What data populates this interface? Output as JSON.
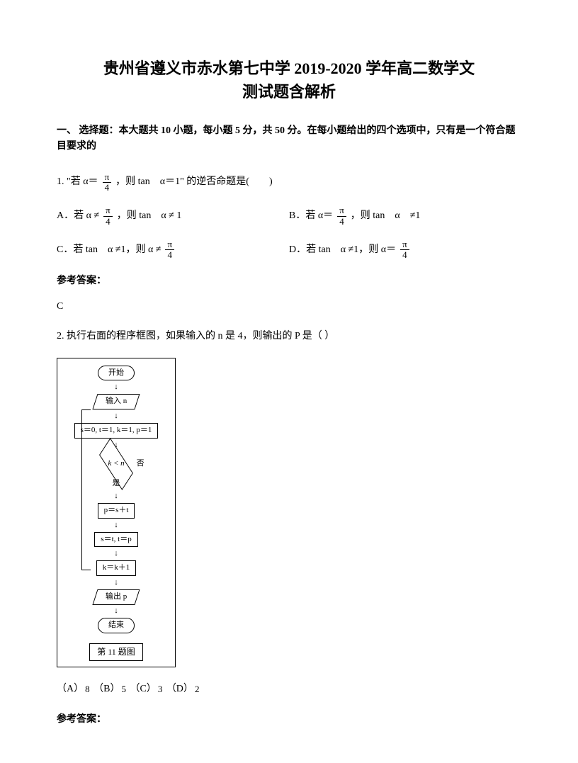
{
  "title_line1": "贵州省遵义市赤水第七中学 2019-2020 学年高二数学文",
  "title_line2": "测试题含解析",
  "section1": "一、 选择题：本大题共 10 小题，每小题 5 分，共 50 分。在每小题给出的四个选项中，只有是一个符合题目要求的",
  "q1": {
    "stem_a": "1. \"若 α＝",
    "stem_b": "，则 tan　α＝1\" 的逆否命题是(　　)",
    "frac_num": "π",
    "frac_den": "4",
    "optA_a": "A．若 α ≠",
    "optA_b": "，则 tan　α ≠ 1",
    "optB_a": "B．若 α＝",
    "optB_b": "，则 tan　α　≠1",
    "optC_a": "C．若 tan　α ≠1，则 α ≠",
    "optD_a": "D．若 tan　α ≠1，则 α＝",
    "ans_label": "参考答案：",
    "ans": "C"
  },
  "q2": {
    "stem": "2. 执行右面的程序框图，如果输入的 n 是 4，则输出的 P 是（  ）",
    "fc": {
      "start": "开始",
      "input": "输入 n",
      "init": "s＝0, t＝1, k＝1, p＝1",
      "cond": "k < n",
      "no": "否",
      "yes": "是",
      "p1": "p＝s＋t",
      "p2": "s＝t, t＝p",
      "p3": "k＝k＋1",
      "out": "输出 p",
      "end": "结束",
      "caption": "第 11 题图"
    },
    "choices": {
      "A": "（A）",
      "Av": "8",
      "B": "（B）",
      "Bv": "5",
      "C": "（C）",
      "Cv": "3",
      "D": "（D）",
      "Dv": "2"
    },
    "ans_label": "参考答案："
  }
}
